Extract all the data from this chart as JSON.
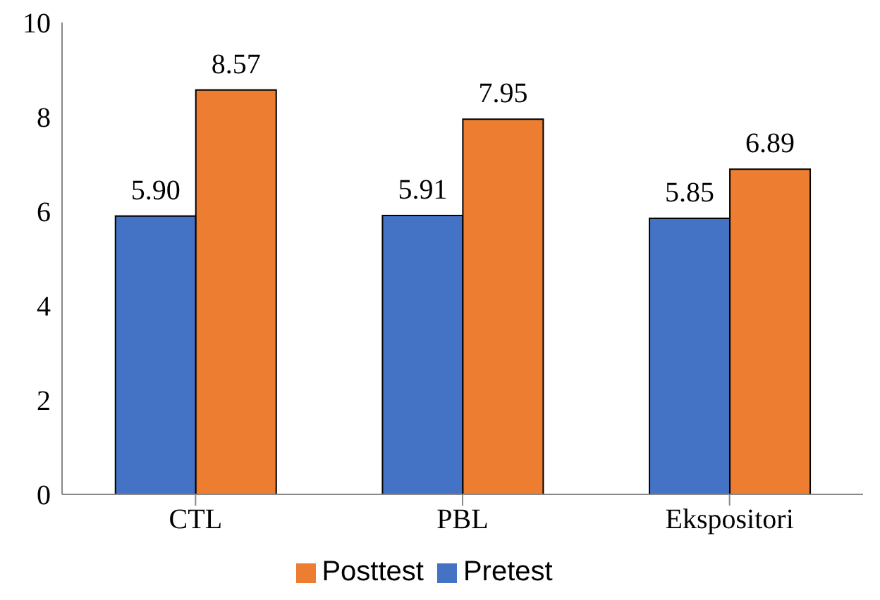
{
  "chart_data": {
    "type": "bar",
    "categories": [
      "CTL",
      "PBL",
      "Ekspositori"
    ],
    "series": [
      {
        "name": "Pretest",
        "color": "#4472c4",
        "values": [
          5.9,
          5.91,
          5.85
        ],
        "value_labels": [
          "5.90",
          "5.91",
          "5.85"
        ]
      },
      {
        "name": "Posttest",
        "color": "#ed7d31",
        "values": [
          8.57,
          7.95,
          6.89
        ],
        "value_labels": [
          "8.57",
          "7.95",
          "6.89"
        ]
      }
    ],
    "ylim": [
      0,
      10
    ],
    "yticks": [
      0,
      2,
      4,
      6,
      8,
      10
    ],
    "grid": false,
    "legend": "bottom"
  }
}
